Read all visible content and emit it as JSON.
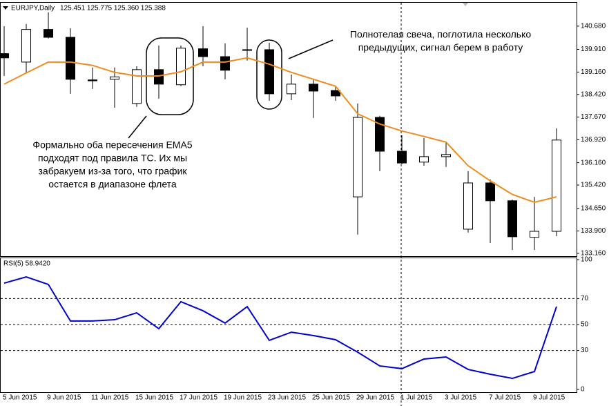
{
  "chart_data": [
    {
      "type": "candlestick",
      "title": "EURJPY,Daily",
      "quote": "125.451 125.775 125.360 125.388",
      "categories": [
        "5 Jun 2015",
        null,
        "9 Jun 2015",
        null,
        "11 Jun 2015",
        null,
        "15 Jun 2015",
        null,
        "17 Jun 2015",
        null,
        "19 Jun 2015",
        null,
        "23 Jun 2015",
        null,
        "25 Jun 2015",
        null,
        "29 Jun 2015",
        null,
        "1 Jul 2015",
        null,
        "3 Jul 2015",
        null,
        "7 Jul 2015",
        null,
        "9 Jul 2015",
        null
      ],
      "open": [
        139.77,
        139.49,
        140.57,
        140.31,
        138.9,
        138.92,
        138.12,
        139.24,
        138.74,
        139.93,
        139.67,
        139.9,
        139.9,
        138.44,
        138.76,
        138.55,
        135.03,
        137.66,
        136.54,
        136.18,
        136.36,
        133.96,
        135.49,
        134.9,
        133.69,
        133.89
      ],
      "high": [
        140.68,
        140.75,
        141.14,
        140.61,
        139.31,
        139.31,
        139.35,
        140.04,
        140.04,
        140.68,
        140.11,
        140.63,
        140.13,
        139.08,
        138.9,
        138.71,
        138.12,
        137.71,
        137.07,
        136.98,
        136.84,
        135.88,
        135.61,
        134.94,
        135.03,
        137.3
      ],
      "low": [
        139.03,
        139.15,
        140.27,
        138.44,
        138.6,
        137.98,
        138.01,
        138.28,
        138.69,
        139.35,
        138.92,
        139.54,
        138.21,
        138.23,
        137.64,
        138.21,
        133.78,
        135.88,
        136.11,
        136.06,
        136.02,
        133.85,
        133.5,
        133.27,
        133.27,
        133.73
      ],
      "close": [
        139.63,
        140.57,
        140.31,
        138.92,
        138.87,
        139.0,
        139.24,
        138.76,
        139.95,
        139.67,
        139.22,
        139.88,
        138.44,
        138.76,
        138.53,
        138.37,
        137.66,
        136.54,
        136.15,
        136.36,
        136.43,
        135.49,
        134.9,
        133.71,
        133.89,
        136.91
      ],
      "up_color": "#ffffff",
      "down_color": "#000000",
      "series": [
        {
          "color": "#f08c1e",
          "values": [
            138.76,
            139.13,
            139.49,
            139.49,
            139.38,
            139.15,
            139.03,
            139.03,
            139.17,
            139.49,
            139.49,
            139.63,
            139.42,
            139.15,
            138.92,
            138.69,
            137.78,
            137.44,
            137.21,
            137.03,
            136.84,
            136.06,
            135.56,
            135.11,
            134.85,
            135.03
          ]
        }
      ],
      "ylim": [
        133.09,
        141.43
      ],
      "yticks": [
        {
          "value": 140.68,
          "label": "140.680"
        },
        {
          "value": 139.91,
          "label": "139.910"
        },
        {
          "value": 139.16,
          "label": "139.160"
        },
        {
          "value": 138.42,
          "label": "138.420"
        },
        {
          "value": 137.67,
          "label": "137.670"
        },
        {
          "value": 136.92,
          "label": "136.920"
        },
        {
          "value": 136.16,
          "label": "136.160"
        },
        {
          "value": 135.42,
          "label": "135.420"
        },
        {
          "value": 134.65,
          "label": "134.650"
        },
        {
          "value": 133.9,
          "label": "133.900"
        },
        {
          "value": 133.16,
          "label": "133.160"
        }
      ],
      "annotations": [
        {
          "lines": [
            "Полнотелая свеча, поглотила несколько",
            "предыдущих, сигнал берем в работу"
          ]
        },
        {
          "lines": [
            "Формально оба пересечения EMA5",
            "подходят под правила ТС. Их мы",
            "забракуем из-за того, что график",
            "остается в диапазоне флета"
          ]
        }
      ]
    },
    {
      "type": "line",
      "title": "RSI(5) 58.9420",
      "series": [
        {
          "color": "#0000cd",
          "values": [
            81.9,
            86.7,
            80.9,
            52.7,
            52.7,
            53.7,
            59.0,
            46.8,
            67.6,
            60.6,
            51.1,
            63.8,
            37.8,
            44.1,
            41.5,
            38.3,
            28.7,
            18.1,
            16.0,
            23.4,
            25.0,
            15.4,
            11.7,
            8.5,
            13.8,
            63.8
          ]
        }
      ],
      "ylim": [
        0,
        100
      ],
      "yticks": [
        100,
        70,
        50,
        30,
        0
      ]
    }
  ]
}
